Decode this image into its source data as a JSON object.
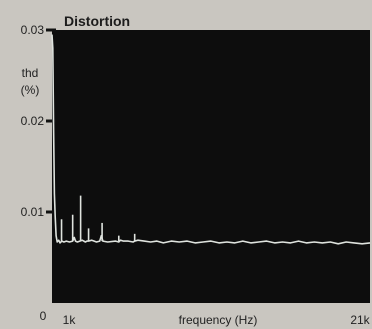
{
  "chart_data": {
    "type": "line",
    "title": "Distortion",
    "xlabel": "frequency (Hz)",
    "ylabel": "thd\n(%)",
    "x_tick_labels": [
      "1k",
      "21k"
    ],
    "y_tick_labels": [
      "0",
      "0.01",
      "0.02",
      "0.03"
    ],
    "x_range_hz": [
      1000,
      21000
    ],
    "ylim": [
      0,
      0.03
    ],
    "grid": false,
    "background": "#0d0d0d",
    "series": [
      {
        "color": "#dfe3de",
        "x": [
          1000,
          1050,
          1100,
          1150,
          1200,
          1260,
          1330,
          1420,
          1500,
          1620,
          1750,
          1900,
          2100,
          2300,
          2400,
          2480,
          2600,
          2900,
          3100,
          3200,
          3300,
          3500,
          3800,
          4000,
          4100,
          4200,
          4500,
          5000,
          5200,
          5300,
          5500,
          5800,
          6100,
          6200,
          6400,
          6800,
          7200,
          7600,
          8000,
          8500,
          9000,
          9500,
          10000,
          10500,
          11000,
          11500,
          12000,
          12500,
          13000,
          13500,
          14000,
          14500,
          15000,
          15500,
          16000,
          16500,
          17000,
          17500,
          18000,
          18500,
          19000,
          19500,
          20000,
          20500,
          21000
        ],
        "values": [
          0.0295,
          0.028,
          0.019,
          0.012,
          0.0095,
          0.0074,
          0.0067,
          0.0069,
          0.0066,
          0.0068,
          0.0067,
          0.0068,
          0.0067,
          0.0068,
          0.0072,
          0.0068,
          0.0067,
          0.0069,
          0.0067,
          0.0068,
          0.0068,
          0.0069,
          0.0067,
          0.0068,
          0.0074,
          0.0068,
          0.0067,
          0.0068,
          0.0067,
          0.0069,
          0.0068,
          0.0068,
          0.0067,
          0.0068,
          0.0069,
          0.0068,
          0.0067,
          0.0068,
          0.0066,
          0.0068,
          0.0067,
          0.0068,
          0.0066,
          0.0067,
          0.0068,
          0.0066,
          0.0067,
          0.0066,
          0.0068,
          0.0066,
          0.0067,
          0.0068,
          0.0066,
          0.0067,
          0.0066,
          0.0068,
          0.0066,
          0.0067,
          0.0066,
          0.0067,
          0.0065,
          0.0067,
          0.0066,
          0.0065,
          0.0066
        ]
      }
    ],
    "spikes": [
      {
        "x": 1600,
        "value": 0.0092
      },
      {
        "x": 2300,
        "value": 0.0097
      },
      {
        "x": 2800,
        "value": 0.0118
      },
      {
        "x": 3300,
        "value": 0.0082
      },
      {
        "x": 4150,
        "value": 0.0088
      },
      {
        "x": 5200,
        "value": 0.0074
      },
      {
        "x": 6200,
        "value": 0.0076
      }
    ]
  }
}
